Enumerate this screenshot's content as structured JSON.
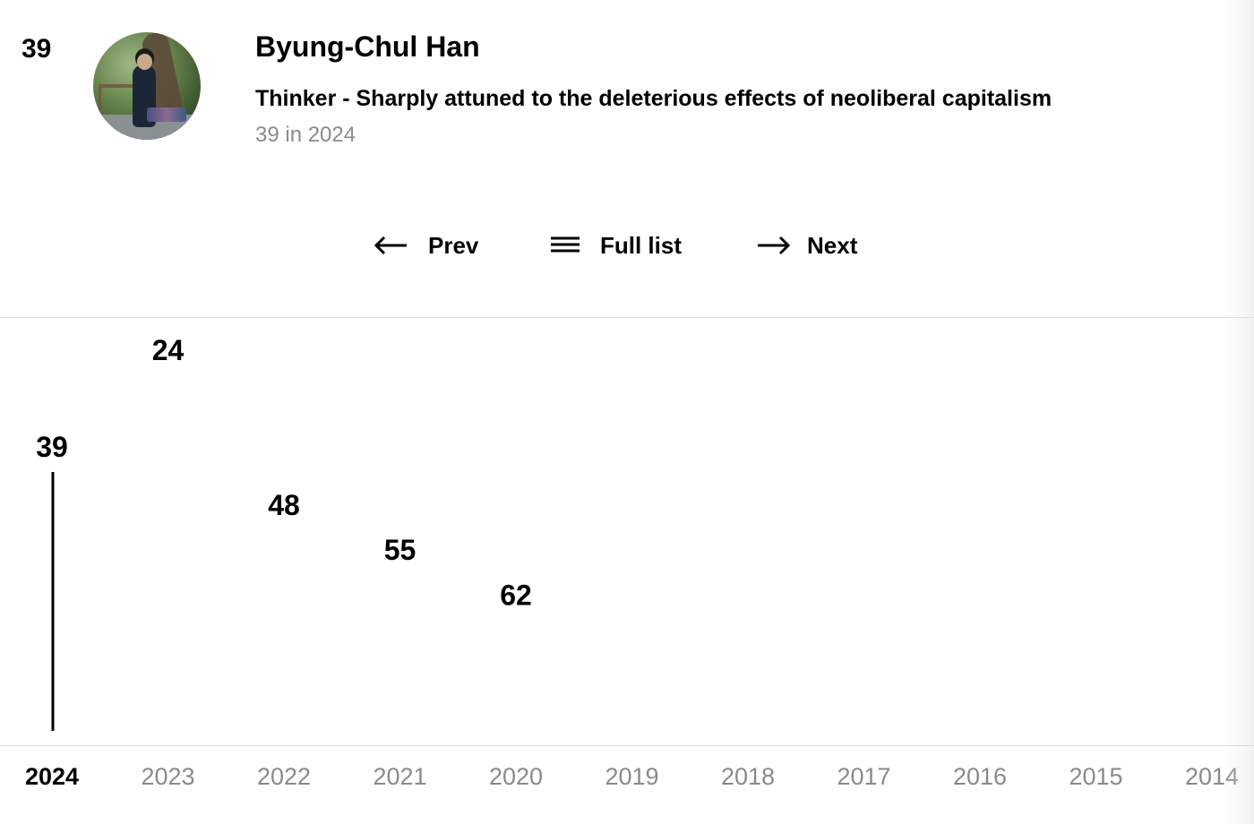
{
  "profile": {
    "rank": "39",
    "name": "Byung-Chul Han",
    "subtitle": "Thinker - Sharply attuned to the deleterious effects of neoliberal capitalism",
    "rank_note": "39 in 2024"
  },
  "nav": {
    "prev_label": "Prev",
    "full_list_label": "Full list",
    "next_label": "Next",
    "prev_icon": "arrow-left-icon",
    "full_list_icon": "list-icon",
    "next_icon": "arrow-right-icon"
  },
  "chart_data": {
    "type": "line",
    "x": [
      "2024",
      "2023",
      "2022",
      "2021",
      "2020",
      "2019",
      "2018",
      "2017",
      "2016",
      "2015",
      "2014"
    ],
    "series": [
      {
        "values": [
          39,
          24,
          48,
          55,
          62,
          null,
          null,
          null,
          null,
          null,
          null
        ]
      }
    ],
    "selected_year": "2024",
    "y_inverted": true,
    "ylim": [
      1,
      100
    ]
  }
}
